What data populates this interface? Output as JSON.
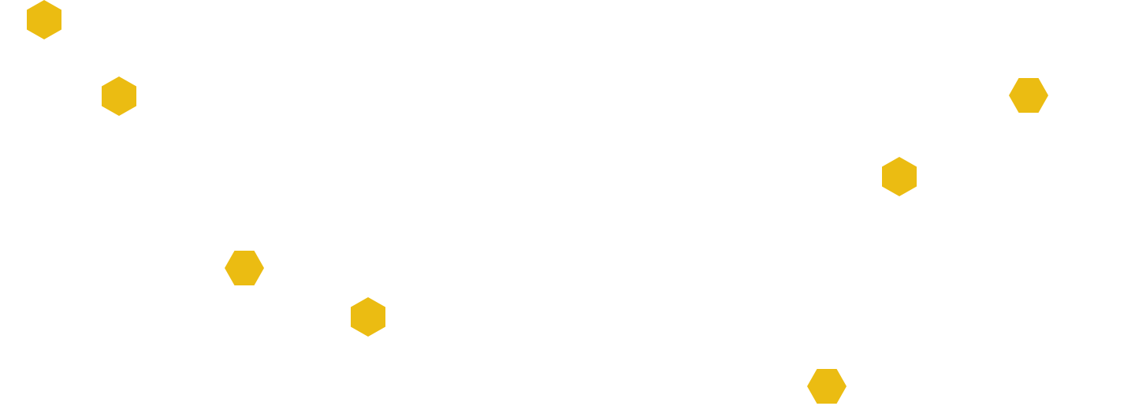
{
  "background_color": "#ffffff",
  "hexagon_color": "#EBBC12",
  "decorations": [
    {
      "name": "hexagon-pointy-top",
      "icon": "hexagon-icon"
    },
    {
      "name": "hexagon-pointy-top",
      "icon": "hexagon-icon"
    },
    {
      "name": "hexagon-pointy-top",
      "icon": "hexagon-icon"
    },
    {
      "name": "hexagon-pointy-top",
      "icon": "hexagon-icon"
    },
    {
      "name": "hexagon-flat-top",
      "icon": "hexagon-icon"
    },
    {
      "name": "hexagon-flat-top",
      "icon": "hexagon-icon"
    },
    {
      "name": "hexagon-flat-top",
      "icon": "hexagon-icon"
    }
  ]
}
